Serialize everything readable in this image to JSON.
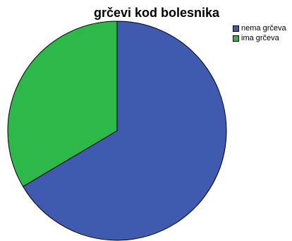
{
  "chart_data": {
    "type": "pie",
    "title": "grčevi kod bolesnika",
    "legend_position": "top-right",
    "slices": [
      {
        "label": "nema grčeva",
        "value": 66.5,
        "color": "#3f5aaf"
      },
      {
        "label": "ima grčeva",
        "value": 33.5,
        "color": "#2db84a"
      }
    ]
  }
}
